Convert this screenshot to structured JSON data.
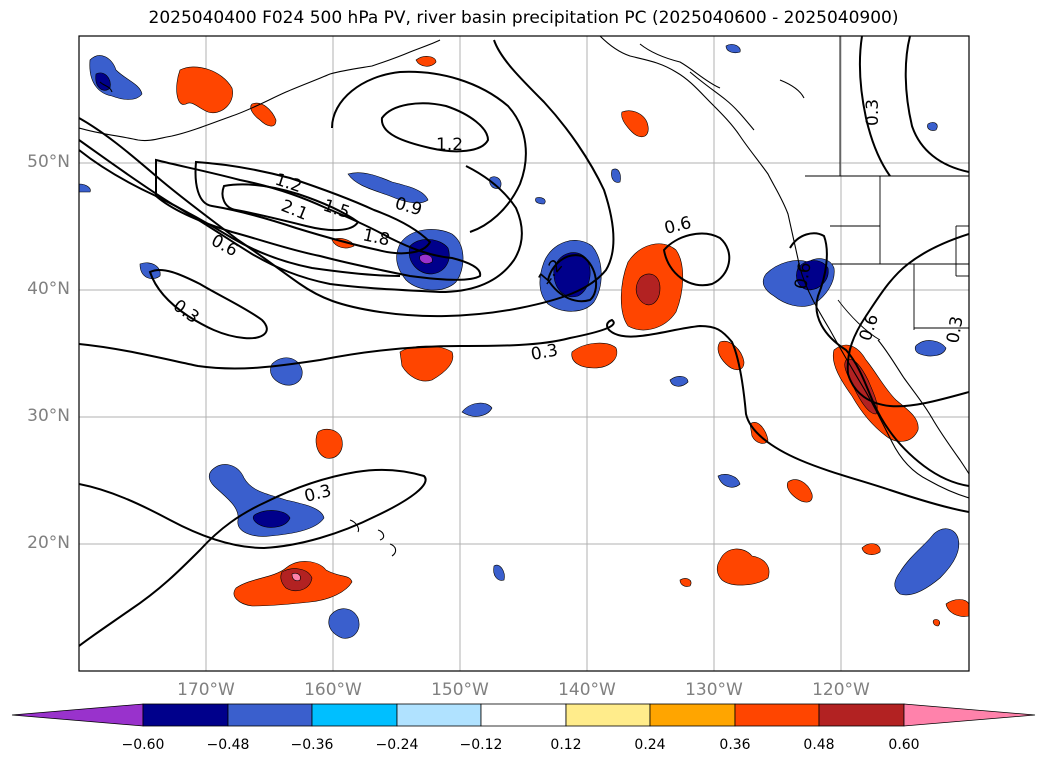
{
  "title": "2025040400 F024 500 hPa PV, river basin precipitation PC (2025040600 - 2025040900)",
  "map": {
    "lon_range": [
      -180,
      -110
    ],
    "lat_range": [
      10,
      60
    ],
    "lat_labels": [
      "50°N",
      "40°N",
      "30°N",
      "20°N"
    ],
    "lon_labels": [
      "170°W",
      "160°W",
      "150°W",
      "140°W",
      "130°W",
      "120°W"
    ],
    "contour_labels": [
      "1.2",
      "1.2",
      "2.1",
      "1.5",
      "1.8",
      "0.9",
      "0.6",
      "0.3",
      "0.6",
      "1.2",
      "0.3",
      "0.3",
      "0.3",
      "0.6",
      "0.3",
      "0.6"
    ],
    "gridlines": true
  },
  "colorbar": {
    "ticks": [
      "−0.60",
      "−0.48",
      "−0.36",
      "−0.24",
      "−0.12",
      "0.12",
      "0.24",
      "0.36",
      "0.48",
      "0.60"
    ],
    "colors": [
      "#9932cc",
      "#00008b",
      "#3a5fcd",
      "#00bfff",
      "#b0e2ff",
      "#ffffff",
      "#ffec8b",
      "#ffa500",
      "#ff4500",
      "#b22222",
      "#ff82ab"
    ],
    "extend": "both"
  }
}
